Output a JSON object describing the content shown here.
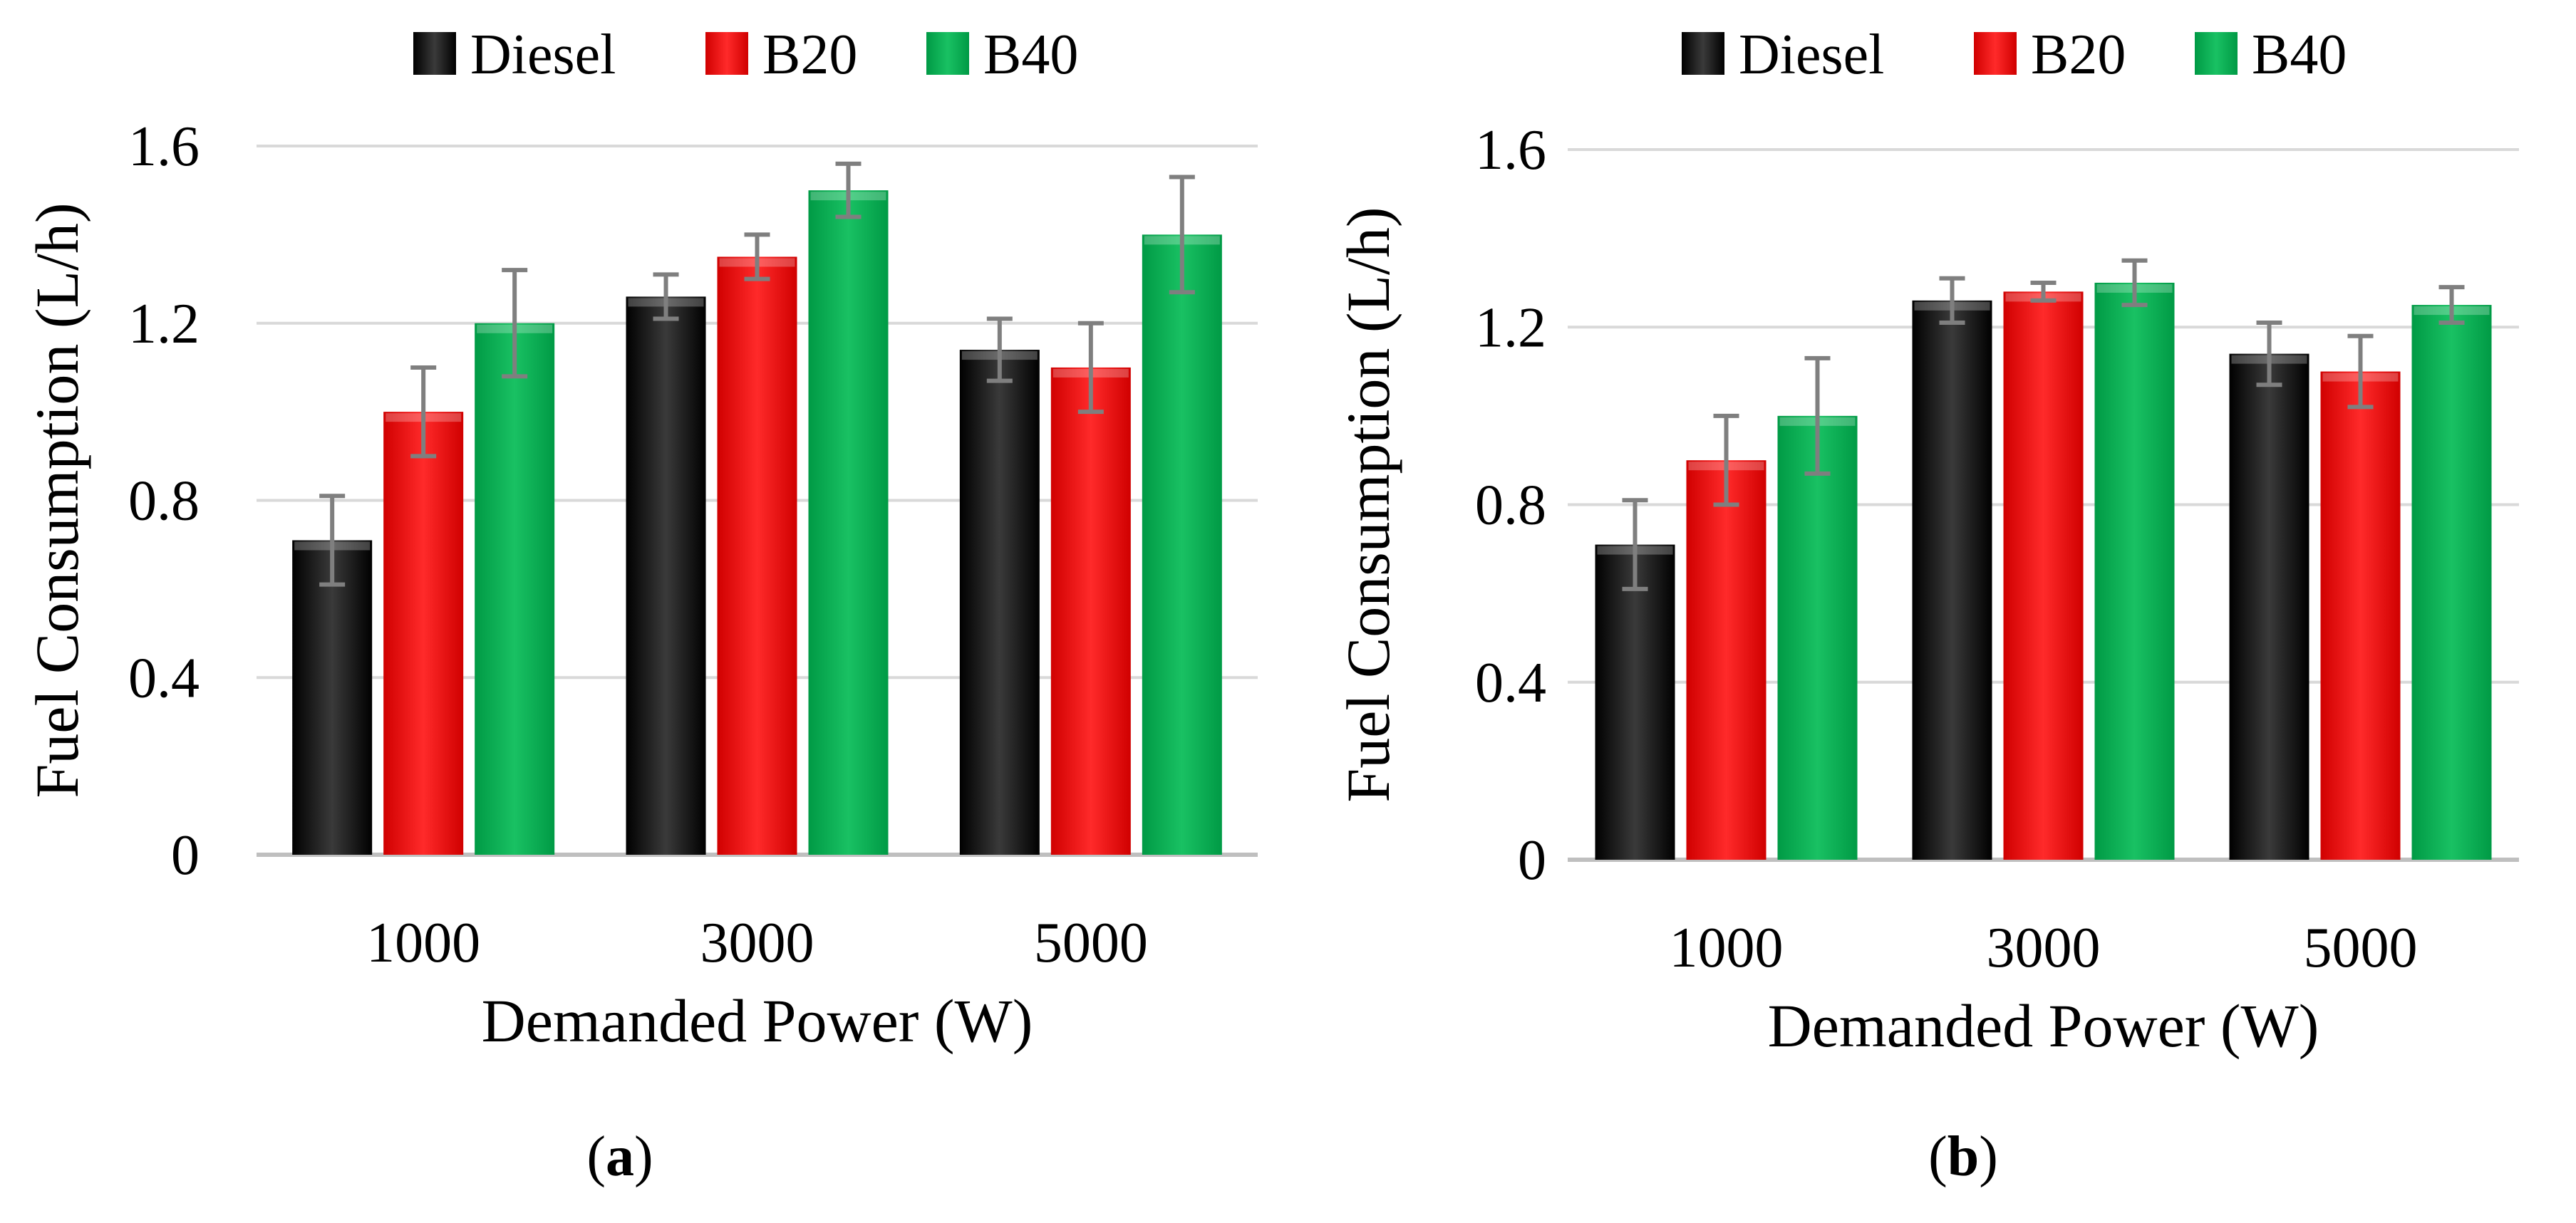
{
  "colors": {
    "Diesel": "#000000",
    "B20": "#ff0000",
    "B40": "#00b050",
    "grid": "#d9d9d9",
    "axis": "#bfbfbf",
    "error": "#7f7f7f"
  },
  "chart_data": [
    {
      "type": "bar",
      "panel_label": "a",
      "title": "",
      "xlabel": "Demanded Power (W)",
      "ylabel": "Fuel Consumption (L/h)",
      "categories": [
        "1000",
        "3000",
        "5000"
      ],
      "ylim": [
        0,
        1.6
      ],
      "yticks": [
        "0",
        "0.4",
        "0.8",
        "1.2",
        "1.6"
      ],
      "grid": true,
      "legend": "top-center",
      "series": [
        {
          "name": "Diesel",
          "values": [
            0.71,
            1.26,
            1.14
          ],
          "errors": [
            0.1,
            0.05,
            0.07
          ]
        },
        {
          "name": "B20",
          "values": [
            1.0,
            1.35,
            1.1
          ],
          "errors": [
            0.1,
            0.05,
            0.1
          ]
        },
        {
          "name": "B40",
          "values": [
            1.2,
            1.5,
            1.4
          ],
          "errors": [
            0.12,
            0.06,
            0.13
          ]
        }
      ]
    },
    {
      "type": "bar",
      "panel_label": "b",
      "title": "",
      "xlabel": "Demanded Power (W)",
      "ylabel": "Fuel Consumption (L/h)",
      "categories": [
        "1000",
        "3000",
        "5000"
      ],
      "ylim": [
        0,
        1.6
      ],
      "yticks": [
        "0",
        "0.4",
        "0.8",
        "1.2",
        "1.6"
      ],
      "grid": true,
      "legend": "top-center",
      "series": [
        {
          "name": "Diesel",
          "values": [
            0.71,
            1.26,
            1.14
          ],
          "errors": [
            0.1,
            0.05,
            0.07
          ]
        },
        {
          "name": "B20",
          "values": [
            0.9,
            1.28,
            1.1
          ],
          "errors": [
            0.1,
            0.02,
            0.08
          ]
        },
        {
          "name": "B40",
          "values": [
            1.0,
            1.3,
            1.25
          ],
          "errors": [
            0.13,
            0.05,
            0.04
          ]
        }
      ]
    }
  ]
}
